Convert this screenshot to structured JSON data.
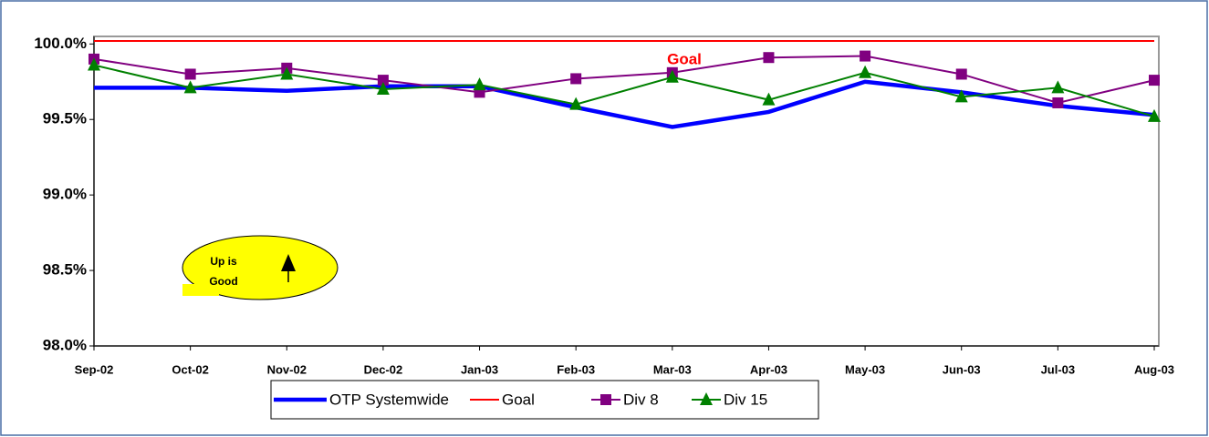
{
  "chart_data": {
    "type": "line",
    "categories": [
      "Sep-02",
      "Oct-02",
      "Nov-02",
      "Dec-02",
      "Jan-03",
      "Feb-03",
      "Mar-03",
      "Apr-03",
      "May-03",
      "Jun-03",
      "Jul-03",
      "Aug-03"
    ],
    "series": [
      {
        "name": "OTP Systemwide",
        "color": "#0000ff",
        "values": [
          99.71,
          99.71,
          99.69,
          99.72,
          99.72,
          99.58,
          99.45,
          99.55,
          99.75,
          99.68,
          99.59,
          99.53
        ]
      },
      {
        "name": "Goal",
        "color": "#ff0000",
        "values": [
          100.02,
          100.02,
          100.02,
          100.02,
          100.02,
          100.02,
          100.02,
          100.02,
          100.02,
          100.02,
          100.02,
          100.02
        ]
      },
      {
        "name": "Div 8",
        "color": "#800080",
        "marker": "square",
        "values": [
          99.9,
          99.8,
          99.84,
          99.76,
          99.68,
          99.77,
          99.81,
          99.91,
          99.92,
          99.8,
          99.61,
          99.76
        ]
      },
      {
        "name": "Div 15",
        "color": "#008000",
        "marker": "triangle",
        "values": [
          99.86,
          99.71,
          99.8,
          99.7,
          99.73,
          99.6,
          99.78,
          99.63,
          99.81,
          99.65,
          99.71,
          99.52
        ]
      }
    ],
    "ylim": [
      98,
      100.05
    ],
    "yticks": [
      {
        "value": 98,
        "label": "98.0%"
      },
      {
        "value": 98.5,
        "label": "98.5%"
      },
      {
        "value": 99,
        "label": "99.0%"
      },
      {
        "value": 99.5,
        "label": "99.5%"
      },
      {
        "value": 100,
        "label": "100.0%"
      }
    ],
    "annotations": [
      "Goal",
      "Up is",
      "Good"
    ],
    "legend": "bottom"
  }
}
